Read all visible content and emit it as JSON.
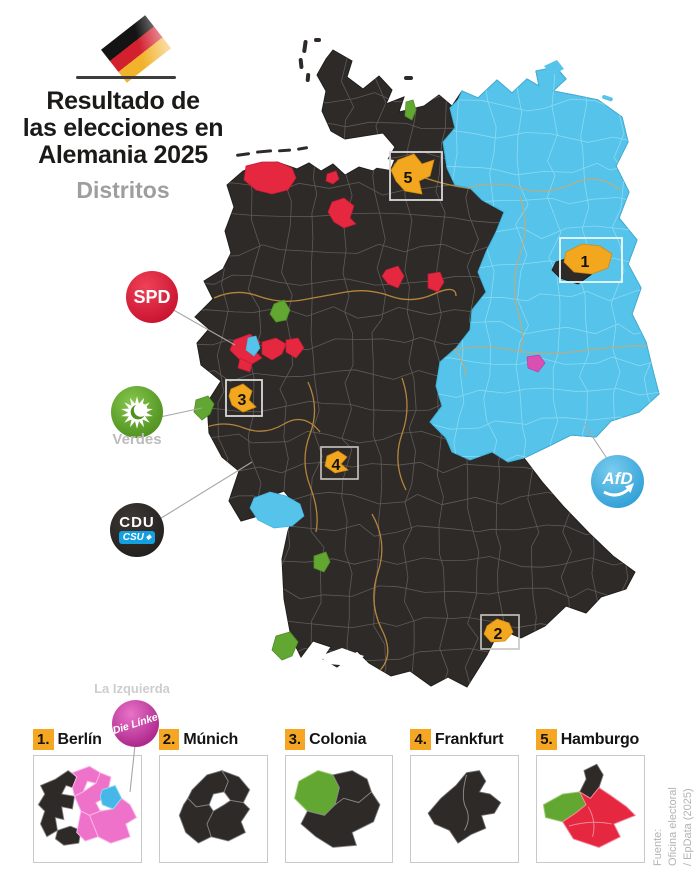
{
  "header": {
    "title_line1": "Resultado de",
    "title_line2": "las elecciones en",
    "title_line3": "Alemania 2025",
    "subtitle": "Distritos"
  },
  "badges": {
    "spd": {
      "label": "SPD",
      "color": "#cf1433"
    },
    "verdes": {
      "label": "Verdes",
      "color": "#63a733"
    },
    "cdu": {
      "label": "CDU",
      "csu_label": "CSU",
      "color": "#2e2a28",
      "csu_color": "#149fe0"
    },
    "afd": {
      "label": "AfD",
      "color": "#55c3ea"
    },
    "izquierda": {
      "label": "La Izquierda",
      "badge_label": "Die Línke",
      "color": "#b52a90"
    }
  },
  "map": {
    "region_colors": {
      "west_cdu": "#2e2a28",
      "east_afd": "#55c3ea",
      "spd": "#e62740",
      "verdes": "#63a733",
      "linke": "#d94fb2",
      "berlin_pink": "#ee72ca",
      "marker": "#f2a71f"
    },
    "markers": [
      {
        "n": "1"
      },
      {
        "n": "2"
      },
      {
        "n": "3"
      },
      {
        "n": "4"
      },
      {
        "n": "5"
      }
    ]
  },
  "cities": [
    {
      "num": "1.",
      "name": "Berlín"
    },
    {
      "num": "2.",
      "name": "Múnich"
    },
    {
      "num": "3.",
      "name": "Colonia"
    },
    {
      "num": "4.",
      "name": "Frankfurt"
    },
    {
      "num": "5.",
      "name": "Hamburgo"
    }
  ],
  "source": {
    "line1": "Fuente:",
    "line2": "Oficina electoral",
    "line3": "/ EpData (2025)"
  }
}
